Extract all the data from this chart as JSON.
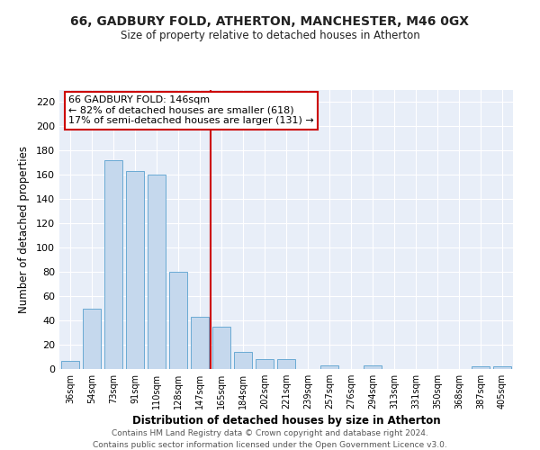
{
  "title1": "66, GADBURY FOLD, ATHERTON, MANCHESTER, M46 0GX",
  "title2": "Size of property relative to detached houses in Atherton",
  "xlabel": "Distribution of detached houses by size in Atherton",
  "ylabel": "Number of detached properties",
  "bar_labels": [
    "36sqm",
    "54sqm",
    "73sqm",
    "91sqm",
    "110sqm",
    "128sqm",
    "147sqm",
    "165sqm",
    "184sqm",
    "202sqm",
    "221sqm",
    "239sqm",
    "257sqm",
    "276sqm",
    "294sqm",
    "313sqm",
    "331sqm",
    "350sqm",
    "368sqm",
    "387sqm",
    "405sqm"
  ],
  "bar_values": [
    7,
    50,
    172,
    163,
    160,
    80,
    43,
    35,
    14,
    8,
    8,
    0,
    3,
    0,
    3,
    0,
    0,
    0,
    0,
    2,
    2
  ],
  "bar_color": "#c5d8ed",
  "bar_edge_color": "#6aaad4",
  "vline_x": 6.5,
  "vline_color": "#cc0000",
  "annotation_title": "66 GADBURY FOLD: 146sqm",
  "annotation_line1": "← 82% of detached houses are smaller (618)",
  "annotation_line2": "17% of semi-detached houses are larger (131) →",
  "annotation_box_color": "#ffffff",
  "annotation_box_edge": "#cc0000",
  "ylim": [
    0,
    230
  ],
  "yticks": [
    0,
    20,
    40,
    60,
    80,
    100,
    120,
    140,
    160,
    180,
    200,
    220
  ],
  "footer1": "Contains HM Land Registry data © Crown copyright and database right 2024.",
  "footer2": "Contains public sector information licensed under the Open Government Licence v3.0.",
  "fig_bg": "#ffffff",
  "plot_bg": "#e8eef8",
  "grid_color": "#ffffff"
}
